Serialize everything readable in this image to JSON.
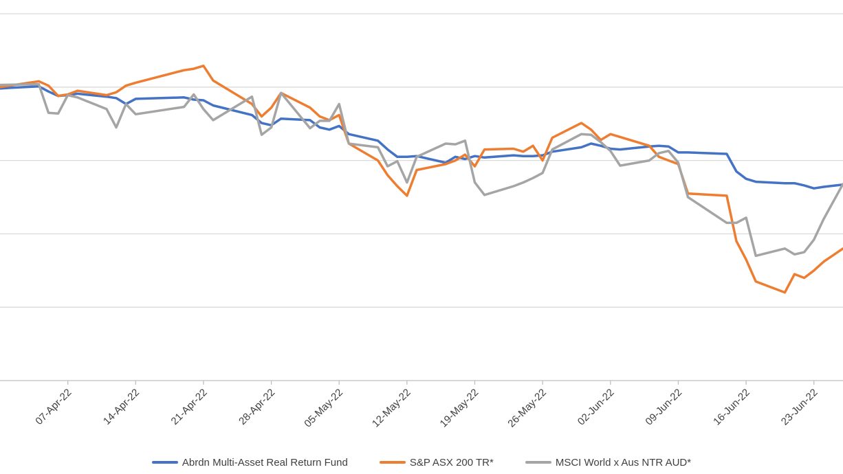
{
  "chart_data": {
    "type": "line",
    "title": "",
    "xlabel": "",
    "ylabel": "",
    "x_ticks": [
      "07-Apr-22",
      "14-Apr-22",
      "21-Apr-22",
      "28-Apr-22",
      "05-May-22",
      "12-May-22",
      "19-May-22",
      "26-May-22",
      "02-Jun-22",
      "09-Jun-22",
      "16-Jun-22",
      "23-Jun-22"
    ],
    "x_range": [
      "2022-03-31",
      "2022-06-26"
    ],
    "y_range": [
      0,
      5
    ],
    "y_gridlines": [
      0,
      1,
      2,
      3,
      4,
      5
    ],
    "y_tick_labels_shown": false,
    "grid": "horizontal",
    "legend_position": "bottom",
    "series": [
      {
        "name": "Abrdn Multi-Asset Real Return Fund",
        "color": "#4472C4",
        "points": [
          [
            "2022-03-31",
            3.98
          ],
          [
            "2022-04-01",
            3.99
          ],
          [
            "2022-04-04",
            4.01
          ],
          [
            "2022-04-05",
            3.94
          ],
          [
            "2022-04-06",
            3.88
          ],
          [
            "2022-04-07",
            3.89
          ],
          [
            "2022-04-08",
            3.91
          ],
          [
            "2022-04-11",
            3.87
          ],
          [
            "2022-04-12",
            3.85
          ],
          [
            "2022-04-13",
            3.77
          ],
          [
            "2022-04-14",
            3.84
          ],
          [
            "2022-04-19",
            3.86
          ],
          [
            "2022-04-20",
            3.83
          ],
          [
            "2022-04-21",
            3.82
          ],
          [
            "2022-04-22",
            3.75
          ],
          [
            "2022-04-26",
            3.62
          ],
          [
            "2022-04-27",
            3.51
          ],
          [
            "2022-04-28",
            3.48
          ],
          [
            "2022-04-29",
            3.57
          ],
          [
            "2022-05-02",
            3.55
          ],
          [
            "2022-05-03",
            3.45
          ],
          [
            "2022-05-04",
            3.42
          ],
          [
            "2022-05-05",
            3.47
          ],
          [
            "2022-05-06",
            3.36
          ],
          [
            "2022-05-09",
            3.27
          ],
          [
            "2022-05-10",
            3.15
          ],
          [
            "2022-05-11",
            3.05
          ],
          [
            "2022-05-12",
            3.05
          ],
          [
            "2022-05-13",
            3.06
          ],
          [
            "2022-05-16",
            2.97
          ],
          [
            "2022-05-17",
            3.05
          ],
          [
            "2022-05-18",
            3.02
          ],
          [
            "2022-05-19",
            3.06
          ],
          [
            "2022-05-20",
            3.04
          ],
          [
            "2022-05-23",
            3.07
          ],
          [
            "2022-05-24",
            3.06
          ],
          [
            "2022-05-25",
            3.06
          ],
          [
            "2022-05-26",
            3.07
          ],
          [
            "2022-05-27",
            3.12
          ],
          [
            "2022-05-30",
            3.18
          ],
          [
            "2022-05-31",
            3.23
          ],
          [
            "2022-06-01",
            3.2
          ],
          [
            "2022-06-02",
            3.16
          ],
          [
            "2022-06-03",
            3.15
          ],
          [
            "2022-06-06",
            3.19
          ],
          [
            "2022-06-07",
            3.2
          ],
          [
            "2022-06-08",
            3.19
          ],
          [
            "2022-06-09",
            3.11
          ],
          [
            "2022-06-10",
            3.11
          ],
          [
            "2022-06-14",
            3.09
          ],
          [
            "2022-06-15",
            2.85
          ],
          [
            "2022-06-16",
            2.75
          ],
          [
            "2022-06-17",
            2.71
          ],
          [
            "2022-06-20",
            2.69
          ],
          [
            "2022-06-21",
            2.69
          ],
          [
            "2022-06-22",
            2.66
          ],
          [
            "2022-06-23",
            2.62
          ],
          [
            "2022-06-24",
            2.64
          ],
          [
            "2022-06-26",
            2.67
          ]
        ]
      },
      {
        "name": "S&P ASX 200 TR*",
        "color": "#ED7D31",
        "points": [
          [
            "2022-03-31",
            4.0
          ],
          [
            "2022-04-04",
            4.08
          ],
          [
            "2022-04-05",
            4.02
          ],
          [
            "2022-04-06",
            3.88
          ],
          [
            "2022-04-07",
            3.9
          ],
          [
            "2022-04-08",
            3.95
          ],
          [
            "2022-04-11",
            3.89
          ],
          [
            "2022-04-12",
            3.93
          ],
          [
            "2022-04-13",
            4.02
          ],
          [
            "2022-04-14",
            4.06
          ],
          [
            "2022-04-19",
            4.23
          ],
          [
            "2022-04-20",
            4.25
          ],
          [
            "2022-04-21",
            4.29
          ],
          [
            "2022-04-22",
            4.09
          ],
          [
            "2022-04-26",
            3.77
          ],
          [
            "2022-04-27",
            3.6
          ],
          [
            "2022-04-28",
            3.72
          ],
          [
            "2022-04-29",
            3.92
          ],
          [
            "2022-05-02",
            3.72
          ],
          [
            "2022-05-03",
            3.6
          ],
          [
            "2022-05-04",
            3.55
          ],
          [
            "2022-05-05",
            3.62
          ],
          [
            "2022-05-06",
            3.23
          ],
          [
            "2022-05-09",
            3.0
          ],
          [
            "2022-05-10",
            2.8
          ],
          [
            "2022-05-11",
            2.65
          ],
          [
            "2022-05-12",
            2.52
          ],
          [
            "2022-05-13",
            2.87
          ],
          [
            "2022-05-16",
            2.95
          ],
          [
            "2022-05-17",
            3.0
          ],
          [
            "2022-05-18",
            3.08
          ],
          [
            "2022-05-19",
            2.92
          ],
          [
            "2022-05-20",
            3.15
          ],
          [
            "2022-05-23",
            3.16
          ],
          [
            "2022-05-24",
            3.12
          ],
          [
            "2022-05-25",
            3.2
          ],
          [
            "2022-05-26",
            3.0
          ],
          [
            "2022-05-27",
            3.31
          ],
          [
            "2022-05-30",
            3.51
          ],
          [
            "2022-05-31",
            3.42
          ],
          [
            "2022-06-01",
            3.28
          ],
          [
            "2022-06-02",
            3.36
          ],
          [
            "2022-06-03",
            3.32
          ],
          [
            "2022-06-06",
            3.2
          ],
          [
            "2022-06-07",
            3.05
          ],
          [
            "2022-06-08",
            3.0
          ],
          [
            "2022-06-09",
            2.95
          ],
          [
            "2022-06-10",
            2.55
          ],
          [
            "2022-06-14",
            2.52
          ],
          [
            "2022-06-15",
            1.9
          ],
          [
            "2022-06-16",
            1.65
          ],
          [
            "2022-06-17",
            1.35
          ],
          [
            "2022-06-20",
            1.2
          ],
          [
            "2022-06-21",
            1.45
          ],
          [
            "2022-06-22",
            1.4
          ],
          [
            "2022-06-23",
            1.5
          ],
          [
            "2022-06-24",
            1.62
          ],
          [
            "2022-06-26",
            1.8
          ]
        ]
      },
      {
        "name": "MSCI World x Aus NTR AUD*",
        "color": "#A5A5A5",
        "points": [
          [
            "2022-03-31",
            4.03
          ],
          [
            "2022-04-04",
            4.04
          ],
          [
            "2022-04-05",
            3.65
          ],
          [
            "2022-04-06",
            3.64
          ],
          [
            "2022-04-07",
            3.89
          ],
          [
            "2022-04-08",
            3.86
          ],
          [
            "2022-04-11",
            3.7
          ],
          [
            "2022-04-12",
            3.45
          ],
          [
            "2022-04-13",
            3.77
          ],
          [
            "2022-04-14",
            3.63
          ],
          [
            "2022-04-19",
            3.73
          ],
          [
            "2022-04-20",
            3.9
          ],
          [
            "2022-04-21",
            3.7
          ],
          [
            "2022-04-22",
            3.55
          ],
          [
            "2022-04-26",
            3.87
          ],
          [
            "2022-04-27",
            3.35
          ],
          [
            "2022-04-28",
            3.45
          ],
          [
            "2022-04-29",
            3.92
          ],
          [
            "2022-05-02",
            3.44
          ],
          [
            "2022-05-03",
            3.54
          ],
          [
            "2022-05-04",
            3.54
          ],
          [
            "2022-05-05",
            3.77
          ],
          [
            "2022-05-06",
            3.23
          ],
          [
            "2022-05-09",
            3.18
          ],
          [
            "2022-05-10",
            2.92
          ],
          [
            "2022-05-11",
            2.99
          ],
          [
            "2022-05-12",
            2.7
          ],
          [
            "2022-05-13",
            3.05
          ],
          [
            "2022-05-16",
            3.23
          ],
          [
            "2022-05-17",
            3.22
          ],
          [
            "2022-05-18",
            3.27
          ],
          [
            "2022-05-19",
            2.7
          ],
          [
            "2022-05-20",
            2.53
          ],
          [
            "2022-05-23",
            2.65
          ],
          [
            "2022-05-24",
            2.7
          ],
          [
            "2022-05-25",
            2.76
          ],
          [
            "2022-05-26",
            2.83
          ],
          [
            "2022-05-27",
            3.15
          ],
          [
            "2022-05-30",
            3.36
          ],
          [
            "2022-05-31",
            3.35
          ],
          [
            "2022-06-01",
            3.25
          ],
          [
            "2022-06-02",
            3.13
          ],
          [
            "2022-06-03",
            2.93
          ],
          [
            "2022-06-06",
            3.0
          ],
          [
            "2022-06-07",
            3.1
          ],
          [
            "2022-06-08",
            3.13
          ],
          [
            "2022-06-09",
            2.97
          ],
          [
            "2022-06-10",
            2.5
          ],
          [
            "2022-06-14",
            2.15
          ],
          [
            "2022-06-15",
            2.15
          ],
          [
            "2022-06-16",
            2.22
          ],
          [
            "2022-06-17",
            1.7
          ],
          [
            "2022-06-20",
            1.8
          ],
          [
            "2022-06-21",
            1.72
          ],
          [
            "2022-06-22",
            1.75
          ],
          [
            "2022-06-23",
            1.92
          ],
          [
            "2022-06-24",
            2.2
          ],
          [
            "2022-06-26",
            2.68
          ]
        ]
      }
    ]
  }
}
